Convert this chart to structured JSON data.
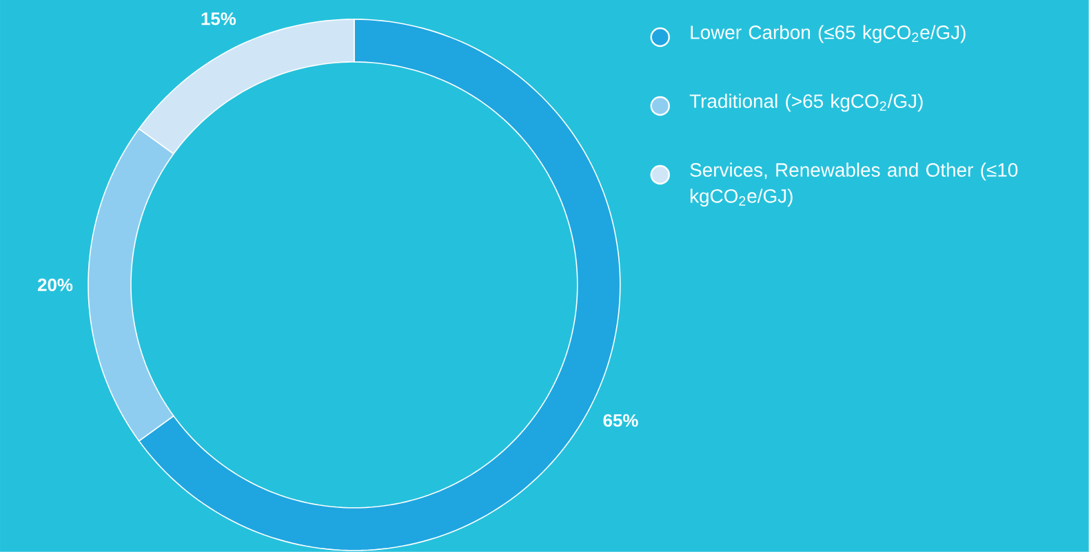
{
  "chart_data": {
    "type": "donut",
    "categories": [
      "Lower Carbon (≤65 kgCO$_{2}$e/GJ)",
      "Traditional (>65 kgCO$_{2}$/GJ)",
      "Services, Renewables and Other (≤10 kgCO$_{2}$e/GJ)"
    ],
    "values": [
      65,
      20,
      15
    ],
    "value_labels": [
      "65%",
      "20%",
      "15%"
    ],
    "colors": [
      "#1fa6e0",
      "#8ecdf0",
      "#d0e6f7"
    ],
    "legend": "right"
  }
}
